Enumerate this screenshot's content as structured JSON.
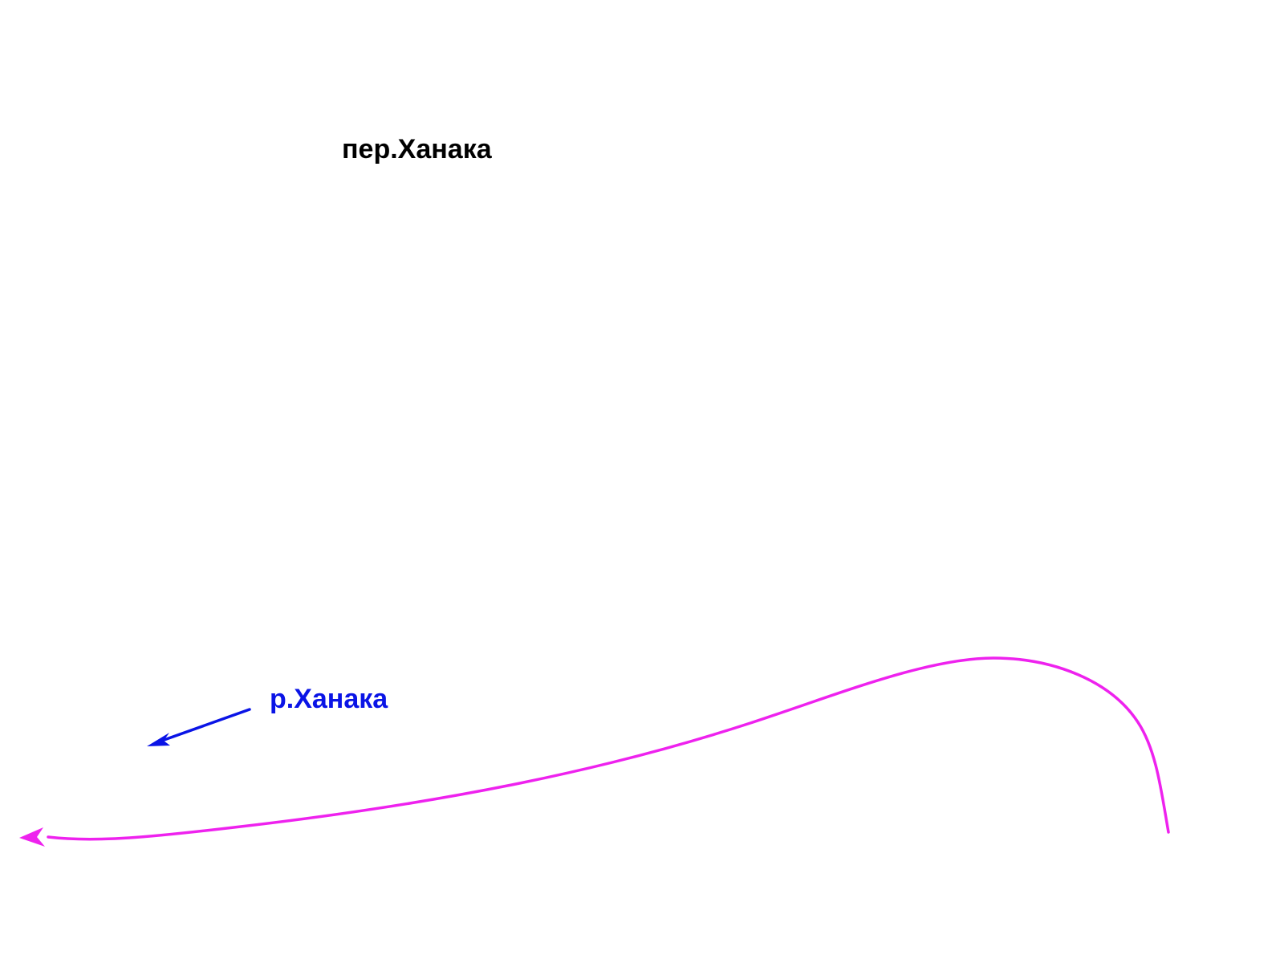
{
  "labels": {
    "pass": "пер.Ханака",
    "river": "р.Ханака"
  },
  "icons": {
    "river_arrow": "arrow-icon",
    "route_arrow": "arrow-icon"
  },
  "colors": {
    "background": "#ffffff",
    "pass_text": "#000000",
    "river": "#0a14e6",
    "route": "#ee22ee"
  }
}
